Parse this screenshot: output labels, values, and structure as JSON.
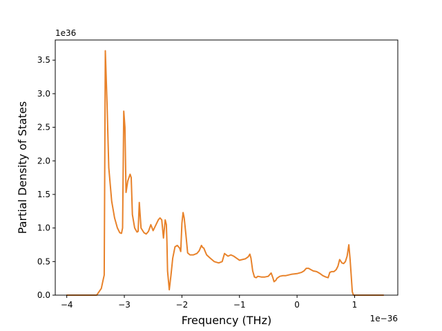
{
  "chart_data": {
    "type": "line",
    "title": "",
    "xlabel": "Frequency (THz)",
    "ylabel": "Partial Density of States",
    "x_offset_label": "1e−36",
    "y_offset_label": "1e36",
    "xlim": [
      -4.2,
      1.75
    ],
    "ylim": [
      0.0,
      3.8
    ],
    "xticks": [
      -4,
      -3,
      -2,
      -1,
      0,
      1
    ],
    "xtick_labels": [
      "−4",
      "−3",
      "−2",
      "−1",
      "0",
      "1"
    ],
    "yticks": [
      0.0,
      0.5,
      1.0,
      1.5,
      2.0,
      2.5,
      3.0,
      3.5
    ],
    "ytick_labels": [
      "0.0",
      "0.5",
      "1.0",
      "1.5",
      "2.0",
      "2.5",
      "3.0",
      "3.5"
    ],
    "grid": false,
    "legend": "none",
    "series": [
      {
        "color": "#e8822a",
        "x": [
          -4.0,
          -3.48,
          -3.4,
          -3.37,
          -3.35,
          -3.33,
          -3.3,
          -3.27,
          -3.22,
          -3.17,
          -3.12,
          -3.08,
          -3.05,
          -3.03,
          -3.01,
          -2.99,
          -2.97,
          -2.94,
          -2.9,
          -2.88,
          -2.86,
          -2.82,
          -2.78,
          -2.76,
          -2.74,
          -2.71,
          -2.66,
          -2.62,
          -2.58,
          -2.54,
          -2.5,
          -2.45,
          -2.41,
          -2.38,
          -2.35,
          -2.32,
          -2.29,
          -2.27,
          -2.26,
          -2.25,
          -2.22,
          -2.19,
          -2.16,
          -2.12,
          -2.08,
          -2.04,
          -2.02,
          -2.0,
          -1.98,
          -1.96,
          -1.93,
          -1.9,
          -1.86,
          -1.8,
          -1.74,
          -1.7,
          -1.66,
          -1.64,
          -1.62,
          -1.6,
          -1.57,
          -1.52,
          -1.44,
          -1.36,
          -1.3,
          -1.26,
          -1.23,
          -1.2,
          -1.15,
          -1.1,
          -1.05,
          -1.0,
          -0.95,
          -0.9,
          -0.85,
          -0.82,
          -0.8,
          -0.77,
          -0.74,
          -0.71,
          -0.68,
          -0.62,
          -0.56,
          -0.5,
          -0.45,
          -0.42,
          -0.4,
          -0.37,
          -0.35,
          -0.3,
          -0.25,
          -0.2,
          -0.1,
          0.0,
          0.08,
          0.12,
          0.16,
          0.2,
          0.24,
          0.28,
          0.34,
          0.4,
          0.45,
          0.5,
          0.54,
          0.57,
          0.6,
          0.64,
          0.68,
          0.71,
          0.74,
          0.78,
          0.81,
          0.84,
          0.87,
          0.9,
          0.92,
          0.94,
          0.96,
          0.98,
          1.0,
          1.02,
          1.1,
          1.5
        ],
        "y": [
          0.0,
          0.0,
          0.1,
          0.22,
          0.3,
          3.64,
          2.85,
          1.9,
          1.4,
          1.15,
          1.0,
          0.93,
          0.92,
          1.0,
          2.74,
          2.5,
          1.53,
          1.7,
          1.8,
          1.75,
          1.2,
          1.0,
          0.94,
          0.95,
          1.38,
          1.0,
          0.93,
          0.91,
          0.95,
          1.05,
          0.96,
          1.05,
          1.12,
          1.15,
          1.12,
          0.85,
          1.12,
          1.05,
          0.8,
          0.36,
          0.08,
          0.3,
          0.55,
          0.72,
          0.74,
          0.7,
          0.65,
          1.07,
          1.23,
          1.15,
          0.9,
          0.63,
          0.6,
          0.6,
          0.62,
          0.66,
          0.74,
          0.71,
          0.7,
          0.66,
          0.6,
          0.56,
          0.5,
          0.48,
          0.5,
          0.62,
          0.6,
          0.58,
          0.6,
          0.58,
          0.55,
          0.52,
          0.53,
          0.54,
          0.57,
          0.61,
          0.55,
          0.36,
          0.27,
          0.26,
          0.28,
          0.27,
          0.27,
          0.28,
          0.33,
          0.26,
          0.2,
          0.22,
          0.25,
          0.28,
          0.29,
          0.29,
          0.31,
          0.32,
          0.34,
          0.36,
          0.4,
          0.4,
          0.38,
          0.36,
          0.35,
          0.32,
          0.29,
          0.27,
          0.26,
          0.34,
          0.35,
          0.35,
          0.38,
          0.43,
          0.53,
          0.48,
          0.47,
          0.5,
          0.58,
          0.75,
          0.55,
          0.3,
          0.05,
          0.0,
          0.0,
          0.0,
          0.0,
          0.0
        ]
      }
    ]
  }
}
